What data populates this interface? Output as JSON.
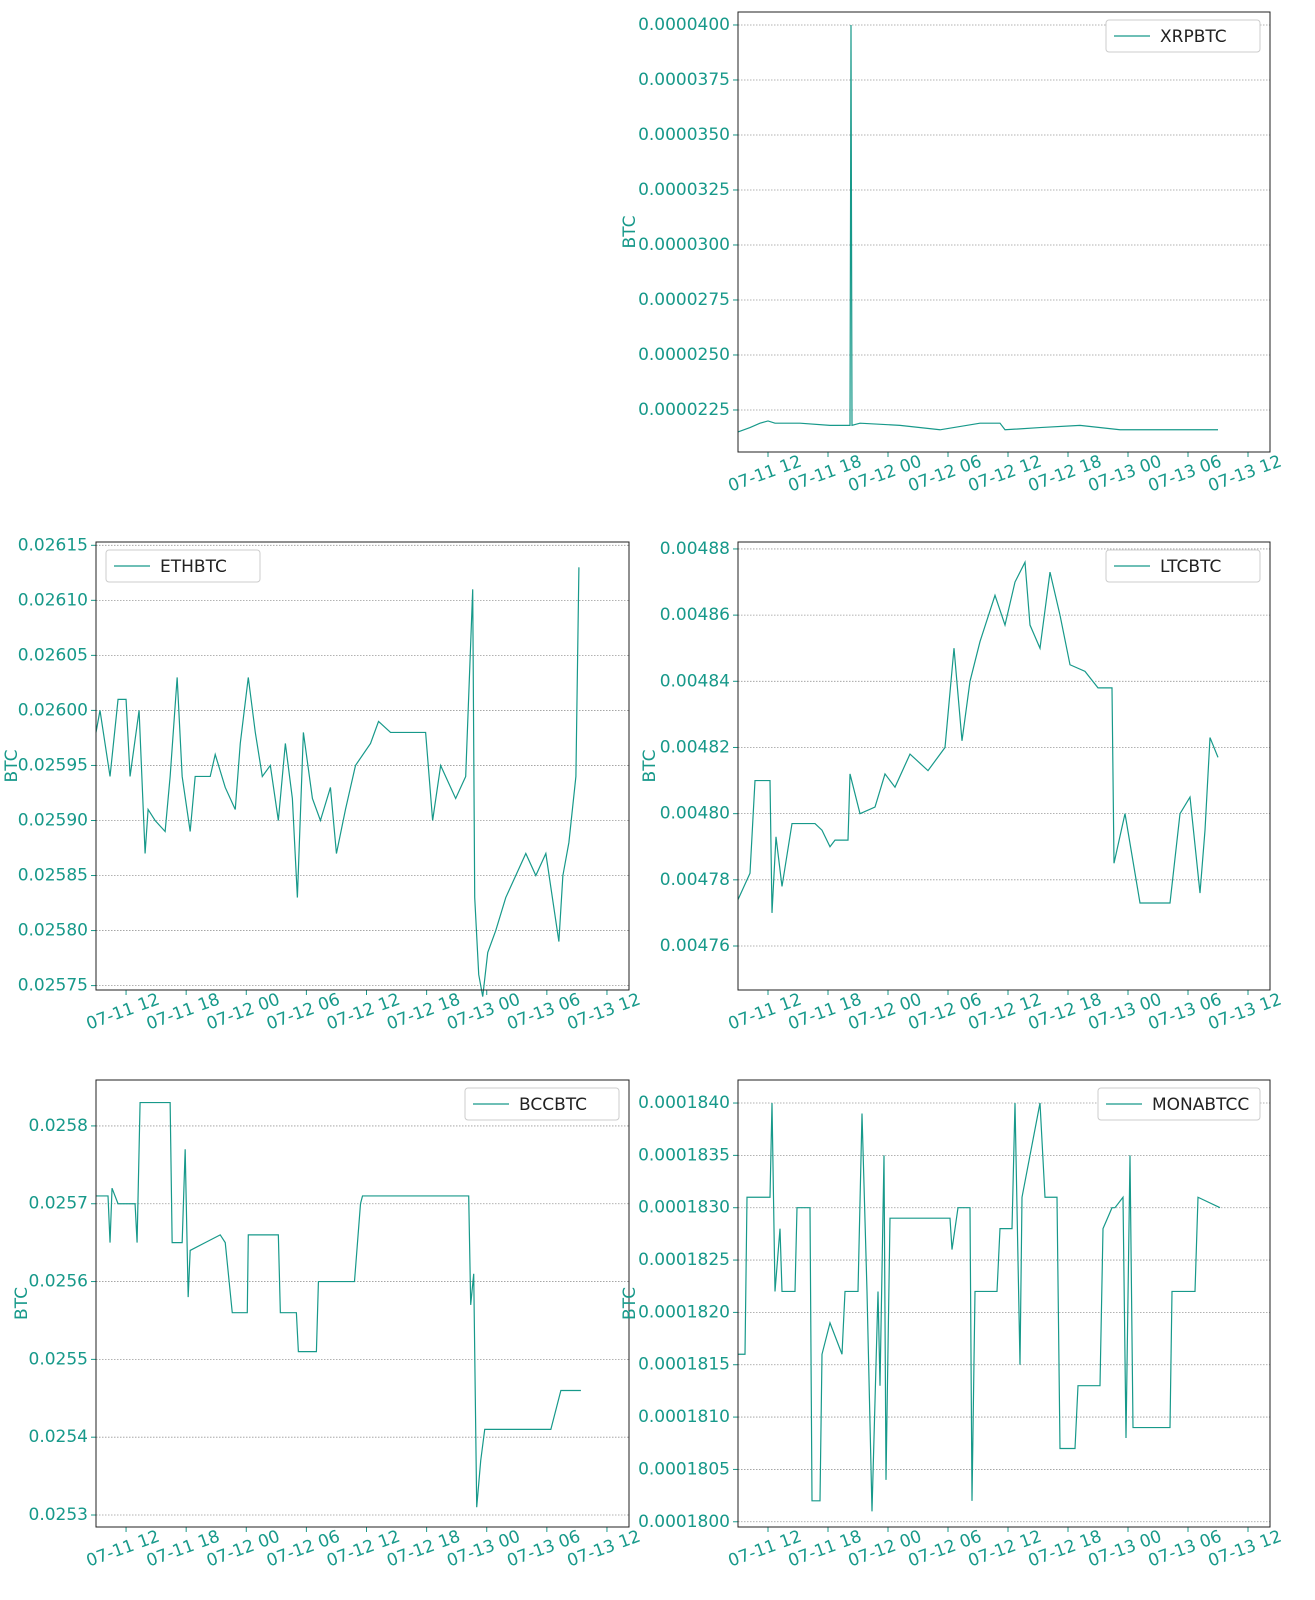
{
  "chart_data": [
    {
      "type": "line",
      "ylabel": "BTC",
      "grid": true,
      "legend": "upper right",
      "xlim": [
        9,
        62.2
      ],
      "ylim": [
        2.059e-05,
        4.059e-05
      ],
      "xticks": [
        {
          "value": 12,
          "label": "07-11 12"
        },
        {
          "value": 18,
          "label": "07-11 18"
        },
        {
          "value": 24,
          "label": "07-12 00"
        },
        {
          "value": 30,
          "label": "07-12 06"
        },
        {
          "value": 36,
          "label": "07-12 12"
        },
        {
          "value": 42,
          "label": "07-12 18"
        },
        {
          "value": 48,
          "label": "07-13 00"
        },
        {
          "value": 54,
          "label": "07-13 06"
        },
        {
          "value": 60,
          "label": "07-13 12"
        }
      ],
      "yticks": [
        {
          "value": 2.25e-05,
          "label": "0.0000225"
        },
        {
          "value": 2.5e-05,
          "label": "0.0000250"
        },
        {
          "value": 2.75e-05,
          "label": "0.0000275"
        },
        {
          "value": 3e-05,
          "label": "0.0000300"
        },
        {
          "value": 3.25e-05,
          "label": "0.0000325"
        },
        {
          "value": 3.5e-05,
          "label": "0.0000350"
        },
        {
          "value": 3.75e-05,
          "label": "0.0000375"
        },
        {
          "value": 4e-05,
          "label": "0.0000400"
        }
      ],
      "x": [
        9,
        10.2,
        11.2,
        12,
        12.7,
        15.2,
        18.2,
        20.2,
        20.3,
        20.4,
        21.2,
        25.2,
        29.2,
        33.2,
        35.2,
        35.7,
        39.2,
        43.2,
        47.2,
        51.2,
        57
      ],
      "series": [
        {
          "name": "XRPBTC",
          "color": "#17998a",
          "values": [
            2.15e-05,
            2.17e-05,
            2.19e-05,
            2.2e-05,
            2.19e-05,
            2.19e-05,
            2.18e-05,
            2.18e-05,
            4e-05,
            2.18e-05,
            2.19e-05,
            2.18e-05,
            2.16e-05,
            2.19e-05,
            2.19e-05,
            2.16e-05,
            2.17e-05,
            2.18e-05,
            2.16e-05,
            2.16e-05,
            2.16e-05
          ]
        }
      ]
    },
    {
      "type": "line",
      "ylabel": "BTC",
      "grid": true,
      "legend": "upper left",
      "xlim": [
        9,
        62.2
      ],
      "ylim": [
        0.025746,
        0.026153
      ],
      "xticks": [
        {
          "value": 12,
          "label": "07-11 12"
        },
        {
          "value": 18,
          "label": "07-11 18"
        },
        {
          "value": 24,
          "label": "07-12 00"
        },
        {
          "value": 30,
          "label": "07-12 06"
        },
        {
          "value": 36,
          "label": "07-12 12"
        },
        {
          "value": 42,
          "label": "07-12 18"
        },
        {
          "value": 48,
          "label": "07-13 00"
        },
        {
          "value": 54,
          "label": "07-13 06"
        },
        {
          "value": 60,
          "label": "07-13 12"
        }
      ],
      "yticks": [
        0.02575,
        {
          "value": 0.0258,
          "label": "0.02580"
        },
        0.02585,
        {
          "value": 0.0259,
          "label": "0.02590"
        },
        0.02595,
        {
          "value": 0.026,
          "label": "0.02600"
        },
        0.02605,
        {
          "value": 0.0261,
          "label": "0.02610"
        },
        0.02615
      ],
      "x": [
        9,
        9.4,
        10.4,
        11.2,
        12,
        12.4,
        13.3,
        13.9,
        14.2,
        14.9,
        15.9,
        16.4,
        17.1,
        17.6,
        18.4,
        18.9,
        20.4,
        20.9,
        21.9,
        22.9,
        23.4,
        24.2,
        24.9,
        25.6,
        26.4,
        27.2,
        27.9,
        28.6,
        29.1,
        29.7,
        30.6,
        31.4,
        32.4,
        33,
        33.9,
        34.9,
        36.4,
        37.2,
        38.4,
        39.4,
        41.9,
        42.6,
        43.4,
        44.9,
        45.9,
        46.6,
        46.8,
        47.2,
        47.6,
        48.1,
        48.9,
        49.9,
        50.9,
        51.9,
        52.9,
        53.9,
        55.2,
        55.6,
        56.2,
        56.9,
        57.2
      ],
      "series": [
        {
          "name": "ETHBTC",
          "color": "#17998a",
          "values": [
            0.02598,
            0.026,
            0.02594,
            0.02601,
            0.02601,
            0.02594,
            0.026,
            0.02587,
            0.02591,
            0.0259,
            0.02589,
            0.02594,
            0.02603,
            0.02594,
            0.02589,
            0.02594,
            0.02594,
            0.02596,
            0.02593,
            0.02591,
            0.02597,
            0.02603,
            0.02598,
            0.02594,
            0.02595,
            0.0259,
            0.02597,
            0.02592,
            0.02583,
            0.02598,
            0.02592,
            0.0259,
            0.02593,
            0.02587,
            0.02591,
            0.02595,
            0.02597,
            0.02599,
            0.02598,
            0.02598,
            0.02598,
            0.0259,
            0.02595,
            0.02592,
            0.02594,
            0.02611,
            0.02583,
            0.02576,
            0.02574,
            0.02578,
            0.0258,
            0.02583,
            0.02585,
            0.02587,
            0.02585,
            0.02587,
            0.02579,
            0.02585,
            0.02588,
            0.02594,
            0.02613
          ]
        }
      ]
    },
    {
      "type": "line",
      "ylabel": "BTC",
      "grid": true,
      "legend": "upper right",
      "xlim": [
        9,
        62.2
      ],
      "ylim": [
        0.0047467,
        0.0048821
      ],
      "xticks": [
        {
          "value": 12,
          "label": "07-11 12"
        },
        {
          "value": 18,
          "label": "07-11 18"
        },
        {
          "value": 24,
          "label": "07-12 00"
        },
        {
          "value": 30,
          "label": "07-12 06"
        },
        {
          "value": 36,
          "label": "07-12 12"
        },
        {
          "value": 42,
          "label": "07-12 18"
        },
        {
          "value": 48,
          "label": "07-13 00"
        },
        {
          "value": 54,
          "label": "07-13 06"
        },
        {
          "value": 60,
          "label": "07-13 12"
        }
      ],
      "yticks": [
        0.00476,
        0.00478,
        {
          "value": 0.0048,
          "label": "0.00480"
        },
        0.00482,
        0.00484,
        0.00486,
        0.00488
      ],
      "x": [
        9,
        10.2,
        10.7,
        12.2,
        12.4,
        12.8,
        13.4,
        14.4,
        15.7,
        16.7,
        17.4,
        18.2,
        18.7,
        20,
        20.2,
        21.2,
        22.7,
        23.7,
        24.7,
        26.2,
        28,
        29.7,
        30.6,
        31.4,
        32.2,
        33.2,
        34.7,
        35.7,
        36.7,
        37.7,
        38.2,
        39.2,
        40.2,
        41.2,
        42.2,
        43.7,
        45,
        46.4,
        46.6,
        47.7,
        49.2,
        52.2,
        53.2,
        54.2,
        55.2,
        55.7,
        56.2,
        57
      ],
      "series": [
        {
          "name": "LTCBTC",
          "color": "#17998a",
          "values": [
            0.004774,
            0.004782,
            0.00481,
            0.00481,
            0.00477,
            0.004793,
            0.004778,
            0.004797,
            0.004797,
            0.004797,
            0.004795,
            0.00479,
            0.004792,
            0.004792,
            0.004812,
            0.0048,
            0.004802,
            0.004812,
            0.004808,
            0.004818,
            0.004813,
            0.00482,
            0.00485,
            0.004822,
            0.00484,
            0.004852,
            0.004866,
            0.004857,
            0.00487,
            0.004876,
            0.004857,
            0.00485,
            0.004873,
            0.00486,
            0.004845,
            0.004843,
            0.004838,
            0.004838,
            0.004785,
            0.0048,
            0.004773,
            0.004773,
            0.0048,
            0.004805,
            0.004776,
            0.004795,
            0.004823,
            0.004817
          ]
        }
      ]
    },
    {
      "type": "line",
      "ylabel": "BTC",
      "grid": true,
      "legend": "upper right",
      "xlim": [
        9,
        62.2
      ],
      "ylim": [
        0.0252846,
        0.025859
      ],
      "xticks": [
        {
          "value": 12,
          "label": "07-11 12"
        },
        {
          "value": 18,
          "label": "07-11 18"
        },
        {
          "value": 24,
          "label": "07-12 00"
        },
        {
          "value": 30,
          "label": "07-12 06"
        },
        {
          "value": 36,
          "label": "07-12 12"
        },
        {
          "value": 42,
          "label": "07-12 18"
        },
        {
          "value": 48,
          "label": "07-13 00"
        },
        {
          "value": 54,
          "label": "07-13 06"
        },
        {
          "value": 60,
          "label": "07-13 12"
        }
      ],
      "yticks": [
        0.0253,
        0.0254,
        0.0255,
        0.0256,
        0.0257,
        0.0258
      ],
      "x": [
        9,
        10.2,
        10.4,
        10.6,
        11.2,
        12.9,
        13.1,
        13.4,
        16.4,
        16.6,
        17.6,
        17.9,
        18.2,
        18.4,
        19.9,
        21.4,
        21.9,
        22.6,
        24.1,
        24.2,
        27.2,
        27.4,
        29,
        29.2,
        31,
        31.2,
        34.8,
        35.4,
        35.6,
        46.2,
        46.4,
        46.7,
        47,
        47.4,
        47.8,
        54.4,
        55.4,
        57.4
      ],
      "series": [
        {
          "name": "BCCBTC",
          "color": "#17998a",
          "values": [
            0.02571,
            0.02571,
            0.02565,
            0.02572,
            0.0257,
            0.0257,
            0.02565,
            0.02583,
            0.02583,
            0.02565,
            0.02565,
            0.02577,
            0.02558,
            0.02564,
            0.02565,
            0.02566,
            0.02565,
            0.02556,
            0.02556,
            0.02566,
            0.02566,
            0.02556,
            0.02556,
            0.02551,
            0.02551,
            0.0256,
            0.0256,
            0.0257,
            0.02571,
            0.02571,
            0.02557,
            0.02561,
            0.02531,
            0.02537,
            0.02541,
            0.02541,
            0.02546,
            0.02546
          ]
        }
      ]
    },
    {
      "type": "line",
      "ylabel": "BTC",
      "grid": true,
      "legend": "upper right",
      "xlim": [
        9,
        62.2
      ],
      "ylim": [
        0.00017995,
        0.00018422
      ],
      "xticks": [
        {
          "value": 12,
          "label": "07-11 12"
        },
        {
          "value": 18,
          "label": "07-11 18"
        },
        {
          "value": 24,
          "label": "07-12 00"
        },
        {
          "value": 30,
          "label": "07-12 06"
        },
        {
          "value": 36,
          "label": "07-12 12"
        },
        {
          "value": 42,
          "label": "07-12 18"
        },
        {
          "value": 48,
          "label": "07-13 00"
        },
        {
          "value": 54,
          "label": "07-13 06"
        },
        {
          "value": 60,
          "label": "07-13 12"
        }
      ],
      "yticks": [
        {
          "value": 0.00018,
          "label": "0.0001800"
        },
        {
          "value": 0.0001805,
          "label": "0.0001805"
        },
        {
          "value": 0.000181,
          "label": "0.0001810"
        },
        {
          "value": 0.0001815,
          "label": "0.0001815"
        },
        {
          "value": 0.000182,
          "label": "0.0001820"
        },
        {
          "value": 0.0001825,
          "label": "0.0001825"
        },
        {
          "value": 0.000183,
          "label": "0.0001830"
        },
        {
          "value": 0.0001835,
          "label": "0.0001835"
        },
        {
          "value": 0.000184,
          "label": "0.0001840"
        }
      ],
      "x": [
        9,
        9.7,
        9.9,
        12.2,
        12.4,
        12.7,
        13.2,
        13.4,
        14.7,
        14.9,
        16.2,
        16.4,
        17.2,
        17.4,
        18.2,
        19.4,
        19.7,
        21,
        21.4,
        21.9,
        22.4,
        23,
        23.2,
        23.6,
        23.8,
        24.2,
        30.2,
        30.4,
        31,
        32.2,
        32.4,
        32.7,
        34.9,
        35.2,
        36.4,
        36.7,
        37.2,
        37.4,
        39.2,
        39.7,
        40.9,
        41.2,
        42.7,
        43,
        45.2,
        45.5,
        46.4,
        46.7,
        47.5,
        47.8,
        48.2,
        48.5,
        52.2,
        52.4,
        54.7,
        55,
        57.2
      ],
      "series": [
        {
          "name": "MONABTCC",
          "color": "#17998a",
          "values": [
            0.0001816,
            0.0001816,
            0.0001831,
            0.0001831,
            0.000184,
            0.0001822,
            0.0001828,
            0.0001822,
            0.0001822,
            0.000183,
            0.000183,
            0.0001802,
            0.0001802,
            0.0001816,
            0.0001819,
            0.0001816,
            0.0001822,
            0.0001822,
            0.0001839,
            0.0001822,
            0.0001801,
            0.0001822,
            0.0001813,
            0.0001835,
            0.0001804,
            0.0001829,
            0.0001829,
            0.0001826,
            0.000183,
            0.000183,
            0.0001802,
            0.0001822,
            0.0001822,
            0.0001828,
            0.0001828,
            0.000184,
            0.0001815,
            0.0001831,
            0.000184,
            0.0001831,
            0.0001831,
            0.0001807,
            0.0001807,
            0.0001813,
            0.0001813,
            0.0001828,
            0.000183,
            0.000183,
            0.0001831,
            0.0001808,
            0.0001835,
            0.0001809,
            0.0001809,
            0.0001822,
            0.0001822,
            0.0001831,
            0.000183
          ]
        }
      ]
    }
  ]
}
